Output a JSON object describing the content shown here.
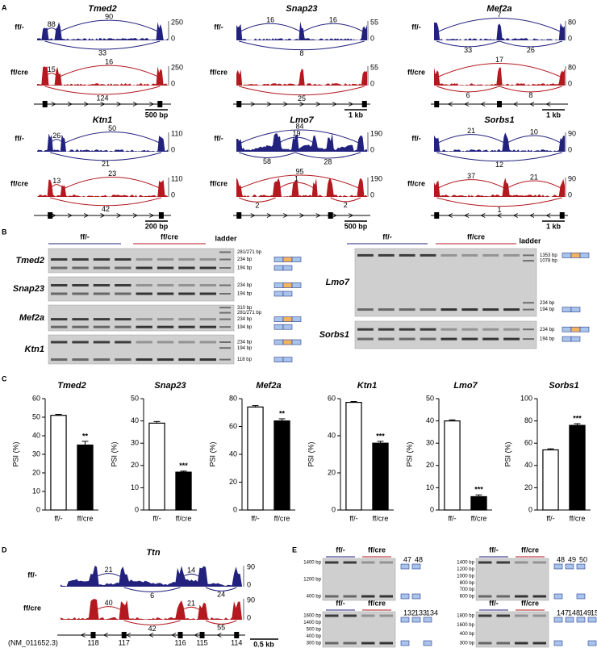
{
  "panel_labels": [
    "A",
    "B",
    "C",
    "D",
    "E"
  ],
  "panel_a": {
    "genes": [
      {
        "name": "Tmed2",
        "scale": "500 bp",
        "rows": [
          {
            "label": "ff/-",
            "ymax": 250,
            "ymin": 0,
            "junctions": [
              88,
              90,
              33
            ]
          },
          {
            "label": "ff/cre",
            "ymax": 250,
            "ymin": 0,
            "junctions": [
              15,
              16,
              124
            ]
          }
        ]
      },
      {
        "name": "Snap23",
        "scale": "1 kb",
        "rows": [
          {
            "label": "ff/-",
            "ymax": 55,
            "ymin": 0,
            "junctions": [
              16,
              16,
              8
            ]
          },
          {
            "label": "ff/cre",
            "ymax": 55,
            "ymin": 0,
            "junctions": [
              25
            ]
          }
        ]
      },
      {
        "name": "Mef2a",
        "scale": "1 kb",
        "rows": [
          {
            "label": "ff/-",
            "ymax": 80,
            "ymin": 0,
            "junctions": [
              7,
              33,
              26
            ]
          },
          {
            "label": "ff/cre",
            "ymax": 80,
            "ymin": 0,
            "junctions": [
              17,
              6,
              8
            ]
          }
        ]
      },
      {
        "name": "Ktn1",
        "scale": "200 bp",
        "rows": [
          {
            "label": "ff/-",
            "ymax": 110,
            "ymin": 0,
            "junctions": [
              26,
              50,
              21
            ]
          },
          {
            "label": "ff/cre",
            "ymax": 110,
            "ymin": 0,
            "junctions": [
              13,
              23,
              42
            ]
          }
        ]
      },
      {
        "name": "Lmo7",
        "scale": "500 bp",
        "rows": [
          {
            "label": "ff/-",
            "ymax": 190,
            "ymin": 0,
            "junctions": [
              84,
              19,
              58,
              28
            ]
          },
          {
            "label": "ff/cre",
            "ymax": 190,
            "ymin": 0,
            "junctions": [
              95,
              1,
              2,
              2
            ]
          }
        ]
      },
      {
        "name": "Sorbs1",
        "scale": "1 kb",
        "rows": [
          {
            "label": "ff/-",
            "ymax": 90,
            "ymin": 0,
            "junctions": [
              21,
              10,
              12
            ]
          },
          {
            "label": "ff/cre",
            "ymax": 90,
            "ymin": 0,
            "junctions": [
              37,
              21,
              1
            ]
          }
        ]
      }
    ]
  },
  "panel_b": {
    "left": {
      "groups": [
        "ff/-",
        "ff/cre"
      ],
      "ladder": "ladder",
      "gels": [
        {
          "gene": "Tmed2",
          "sizes": [
            "281/271 bp",
            "234 bp",
            "194 bp"
          ]
        },
        {
          "gene": "Snap23",
          "sizes": [
            "234 bp",
            "194 bp"
          ]
        },
        {
          "gene": "Mef2a",
          "sizes": [
            "310 bp",
            "281/271 bp",
            "234 bp",
            "194 bp"
          ]
        },
        {
          "gene": "Ktn1",
          "sizes": [
            "234 bp",
            "194 bp",
            "118 bp"
          ]
        }
      ]
    },
    "right": {
      "groups": [
        "ff/-",
        "ff/cre"
      ],
      "ladder": "ladder",
      "gels": [
        {
          "gene": "Lmo7",
          "sizes": [
            "1353 bp",
            "1078 bp",
            "234 bp",
            "194 bp"
          ]
        },
        {
          "gene": "Sorbs1",
          "sizes": [
            "234 bp",
            "194 bp"
          ]
        }
      ]
    }
  },
  "chart_data": [
    {
      "type": "bar",
      "title": "Tmed2",
      "ylabel": "PSI (%)",
      "categories": [
        "ff/-",
        "ff/cre"
      ],
      "values": [
        51,
        35
      ],
      "errors": [
        0.5,
        2
      ],
      "colors": [
        "#ffffff",
        "#000000"
      ],
      "ylim": [
        0,
        60
      ],
      "yticks": [
        0,
        10,
        20,
        30,
        40,
        50,
        60
      ],
      "significance": "**"
    },
    {
      "type": "bar",
      "title": "Snap23",
      "ylabel": "PSI (%)",
      "categories": [
        "ff/-",
        "ff/cre"
      ],
      "values": [
        39,
        17
      ],
      "errors": [
        0.7,
        0.5
      ],
      "colors": [
        "#ffffff",
        "#000000"
      ],
      "ylim": [
        0,
        50
      ],
      "yticks": [
        0,
        10,
        20,
        30,
        40,
        50
      ],
      "significance": "***"
    },
    {
      "type": "bar",
      "title": "Mef2a",
      "ylabel": "PSI (%)",
      "categories": [
        "ff/-",
        "ff/cre"
      ],
      "values": [
        74,
        64
      ],
      "errors": [
        1,
        1.5
      ],
      "colors": [
        "#ffffff",
        "#000000"
      ],
      "ylim": [
        0,
        80
      ],
      "yticks": [
        0,
        20,
        40,
        60,
        80
      ],
      "significance": "**"
    },
    {
      "type": "bar",
      "title": "Ktn1",
      "ylabel": "PSI (%)",
      "categories": [
        "ff/-",
        "ff/cre"
      ],
      "values": [
        58,
        36
      ],
      "errors": [
        0.5,
        1
      ],
      "colors": [
        "#ffffff",
        "#000000"
      ],
      "ylim": [
        0,
        60
      ],
      "yticks": [
        0,
        20,
        40,
        60
      ],
      "significance": "***"
    },
    {
      "type": "bar",
      "title": "Lmo7",
      "ylabel": "PSI (%)",
      "categories": [
        "ff/-",
        "ff/cre"
      ],
      "values": [
        40,
        6
      ],
      "errors": [
        0.5,
        0.8
      ],
      "colors": [
        "#ffffff",
        "#000000"
      ],
      "ylim": [
        0,
        50
      ],
      "yticks": [
        0,
        10,
        20,
        30,
        40,
        50
      ],
      "significance": "***"
    },
    {
      "type": "bar",
      "title": "Sorbs1",
      "ylabel": "PSI (%)",
      "categories": [
        "ff/-",
        "ff/cre"
      ],
      "values": [
        54,
        76
      ],
      "errors": [
        1,
        1.5
      ],
      "colors": [
        "#ffffff",
        "#000000"
      ],
      "ylim": [
        0,
        100
      ],
      "yticks": [
        0,
        20,
        40,
        60,
        80,
        100
      ],
      "significance": "***"
    }
  ],
  "panel_d": {
    "gene": "Ttn",
    "rows": [
      {
        "label": "ff/-",
        "ymax": 90,
        "ymin": 0,
        "junctions": [
          21,
          14,
          6,
          24
        ]
      },
      {
        "label": "ff/cre",
        "ymax": 90,
        "ymin": 0,
        "junctions": [
          40,
          21,
          42,
          55
        ]
      }
    ],
    "exons": [
      "118",
      "117",
      "116",
      "115",
      "114"
    ],
    "transcript": "(NM_011652.3)",
    "scale": "0.5 kb"
  },
  "panel_e": {
    "gels": [
      {
        "groups": [
          "ff/-",
          "ff/cre"
        ],
        "sizes": [
          "1400 bp",
          "1200 bp",
          "400 bp"
        ],
        "exons": [
          "47",
          "48"
        ]
      },
      {
        "groups": [
          "ff/-",
          "ff/cre"
        ],
        "sizes": [
          "1400 bp",
          "1200 bp",
          "1000 bp",
          "800 bp",
          "700 bp",
          "600 bp"
        ],
        "exons": [
          "48",
          "49",
          "50"
        ]
      },
      {
        "groups": [
          "ff/-",
          "ff/cre"
        ],
        "sizes": [
          "1600 bp",
          "1400 bp",
          "500 bp",
          "400 bp",
          "300 bp"
        ],
        "exons": [
          "132",
          "133",
          "134"
        ]
      },
      {
        "groups": [
          "ff/-",
          "ff/cre"
        ],
        "sizes": [
          "1800 bp",
          "1600 bp",
          "400 bp",
          "300 bp"
        ],
        "exons": [
          "147",
          "148",
          "149",
          "150"
        ]
      }
    ]
  }
}
